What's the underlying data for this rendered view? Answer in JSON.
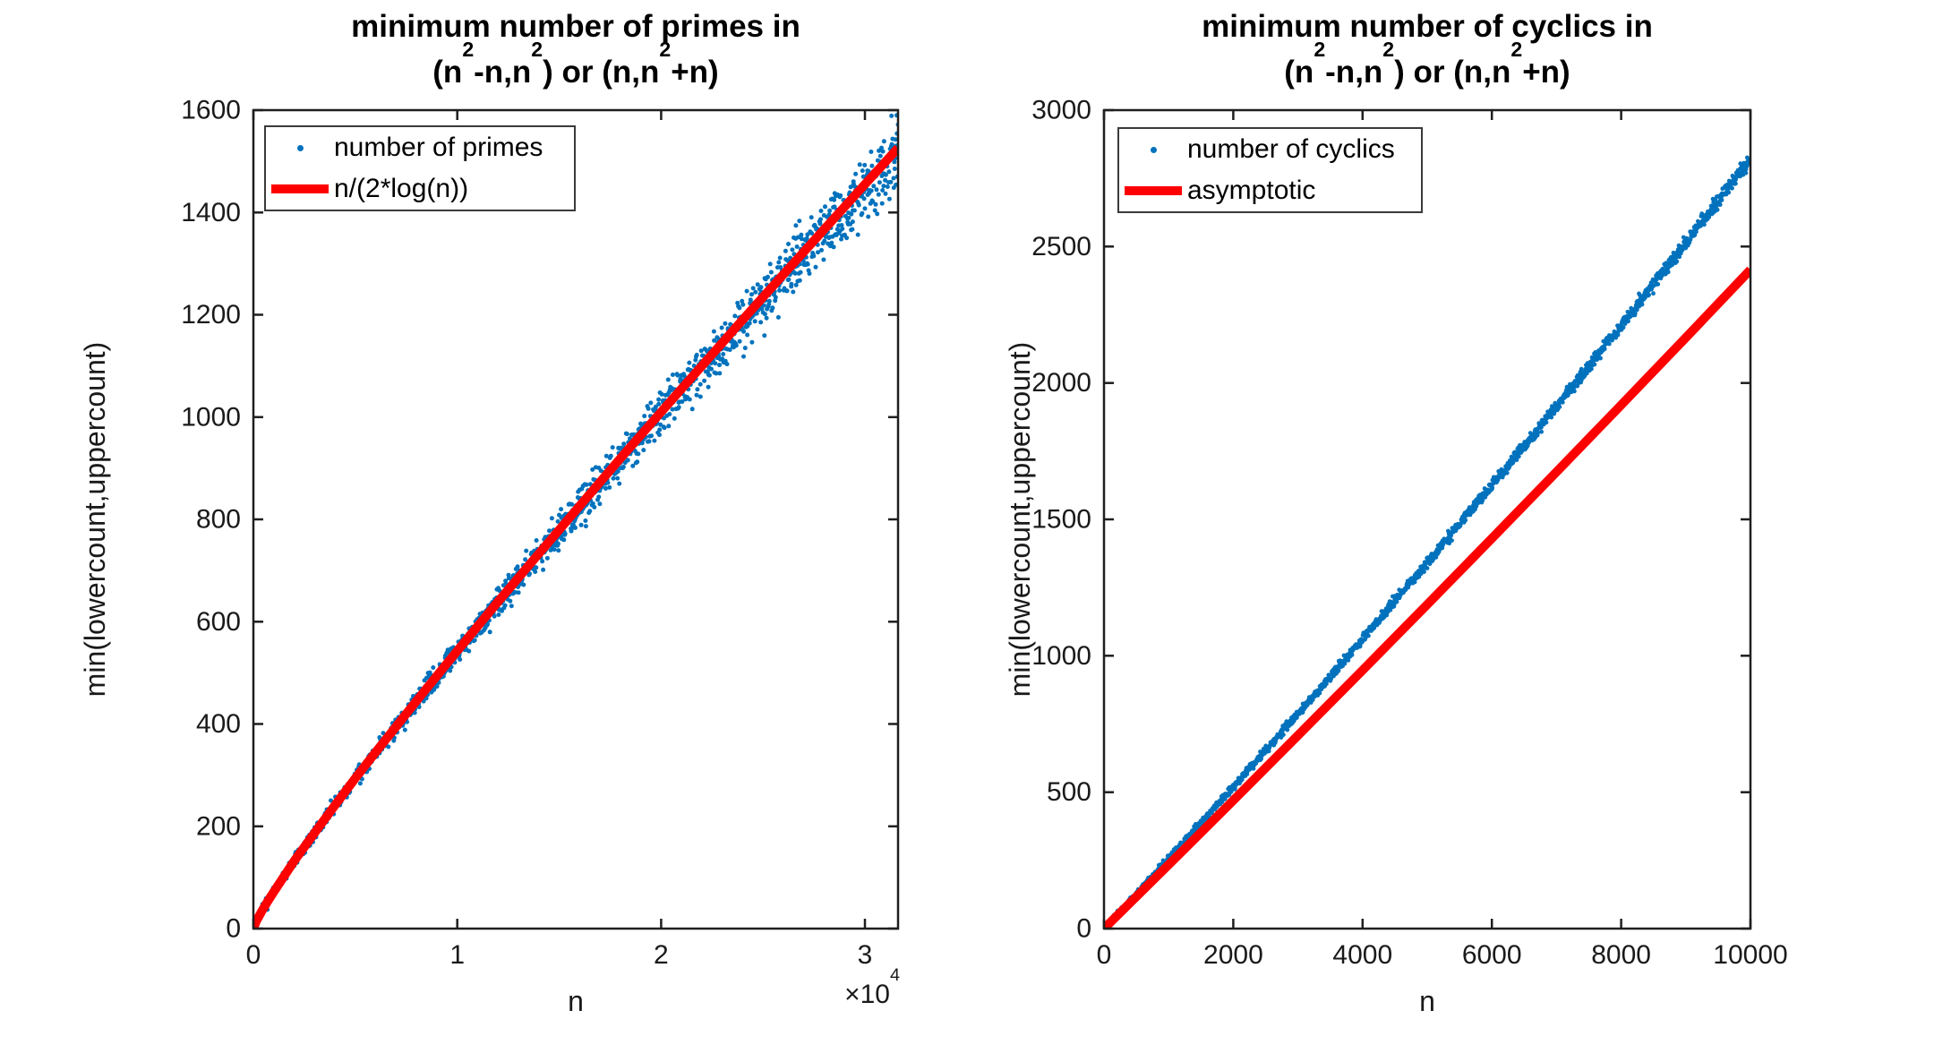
{
  "figure_background": "#FFFFFF",
  "chart_data": [
    {
      "type": "scatter",
      "title_line1": "minimum number of primes in",
      "title_line2": "(n^2-n,n^2) or (n,n^2+n)",
      "xlabel": "n",
      "ylabel": "min(lowercount,uppercount)",
      "x_exponent": "×10^4",
      "xlim": [
        0,
        31623
      ],
      "ylim": [
        0,
        1600
      ],
      "xticks": {
        "values": [
          0,
          10000,
          20000,
          30000
        ],
        "labels": [
          "0",
          "1",
          "2",
          "3"
        ]
      },
      "yticks": {
        "values": [
          0,
          200,
          400,
          600,
          800,
          1000,
          1200,
          1400,
          1600
        ],
        "labels": [
          "0",
          "200",
          "400",
          "600",
          "800",
          "1000",
          "1200",
          "1400",
          "1600"
        ]
      },
      "grid": false,
      "legend_position": "northwest",
      "legend": [
        {
          "label": "number of primes",
          "marker": "dot",
          "color": "#0072BD"
        },
        {
          "label": "n/(2*log(n))",
          "marker": "line",
          "color": "#FF0000"
        }
      ],
      "series": [
        {
          "name": "number of primes",
          "kind": "scatter",
          "color": "#0072BD",
          "marker_radius": 2.5,
          "trend": [
            [
              0,
              0
            ],
            [
              500,
              40
            ],
            [
              1000,
              72
            ],
            [
              2000,
              132
            ],
            [
              3000,
              187
            ],
            [
              4000,
              241
            ],
            [
              5000,
              294
            ],
            [
              6000,
              345
            ],
            [
              7000,
              395
            ],
            [
              8000,
              445
            ],
            [
              9000,
              494
            ],
            [
              10000,
              543
            ],
            [
              12000,
              639
            ],
            [
              14000,
              733
            ],
            [
              16000,
              826
            ],
            [
              18000,
              919
            ],
            [
              20000,
              1010
            ],
            [
              22000,
              1100
            ],
            [
              24000,
              1190
            ],
            [
              26000,
              1279
            ],
            [
              28000,
              1367
            ],
            [
              30000,
              1455
            ],
            [
              31623,
              1526
            ]
          ],
          "scatter_gen": {
            "count": 1600,
            "n_start": 150,
            "seed": 7,
            "sigma_base": 5,
            "sigma_growth": 30,
            "sigma_power": 1.2,
            "bias_amp": -12,
            "bias_power": 4
          }
        },
        {
          "name": "n/(2*log(n))",
          "kind": "line",
          "color": "#FF0000",
          "line_width": 10,
          "points": [
            [
              0,
              0
            ],
            [
              150,
              15
            ],
            [
              400,
              33
            ],
            [
              700,
              53
            ],
            [
              1000,
              72
            ],
            [
              2000,
              132
            ],
            [
              3000,
              187
            ],
            [
              4000,
              241
            ],
            [
              5000,
              294
            ],
            [
              6000,
              345
            ],
            [
              7000,
              395
            ],
            [
              8000,
              445
            ],
            [
              9000,
              494
            ],
            [
              10000,
              543
            ],
            [
              12000,
              639
            ],
            [
              14000,
              733
            ],
            [
              16000,
              826
            ],
            [
              18000,
              919
            ],
            [
              20000,
              1010
            ],
            [
              22000,
              1100
            ],
            [
              24000,
              1190
            ],
            [
              26000,
              1279
            ],
            [
              28000,
              1367
            ],
            [
              30000,
              1455
            ],
            [
              31623,
              1526
            ]
          ]
        }
      ]
    },
    {
      "type": "scatter",
      "title_line1": "minimum number of cyclics in",
      "title_line2": "(n^2-n,n^2) or (n,n^2+n)",
      "xlabel": "n",
      "ylabel": "min(lowercount,uppercount)",
      "x_exponent": "",
      "xlim": [
        0,
        10000
      ],
      "ylim": [
        0,
        3000
      ],
      "xticks": {
        "values": [
          0,
          2000,
          4000,
          6000,
          8000,
          10000
        ],
        "labels": [
          "0",
          "2000",
          "4000",
          "6000",
          "8000",
          "10000"
        ]
      },
      "yticks": {
        "values": [
          0,
          500,
          1000,
          1500,
          2000,
          2500,
          3000
        ],
        "labels": [
          "0",
          "500",
          "1000",
          "1500",
          "2000",
          "2500",
          "3000"
        ]
      },
      "grid": false,
      "legend_position": "northwest",
      "legend": [
        {
          "label": "number of cyclics",
          "marker": "dot",
          "color": "#0072BD"
        },
        {
          "label": "asymptotic",
          "marker": "line",
          "color": "#FF0000"
        }
      ],
      "series": [
        {
          "name": "number of cyclics",
          "kind": "scatter",
          "color": "#0072BD",
          "marker_radius": 2.4,
          "trend": [
            [
              0,
              0
            ],
            [
              1000,
              257
            ],
            [
              2000,
              519
            ],
            [
              3000,
              787
            ],
            [
              4000,
              1061
            ],
            [
              5000,
              1340
            ],
            [
              6000,
              1625
            ],
            [
              7000,
              1915
            ],
            [
              8000,
              2211
            ],
            [
              9000,
              2513
            ],
            [
              10000,
              2820
            ]
          ],
          "scatter_gen": {
            "count": 1700,
            "n_start": 40,
            "seed": 11,
            "sigma_base": 5.5,
            "sigma_growth": 8,
            "sigma_power": 1,
            "bias_amp": 0,
            "bias_power": 1
          }
        },
        {
          "name": "asymptotic",
          "kind": "line",
          "color": "#FF0000",
          "line_width": 10,
          "points": [
            [
              0,
              0
            ],
            [
              1000,
              234
            ],
            [
              2000,
              470
            ],
            [
              3000,
              708
            ],
            [
              4000,
              947
            ],
            [
              5000,
              1188
            ],
            [
              6000,
              1430
            ],
            [
              7000,
              1674
            ],
            [
              8000,
              1919
            ],
            [
              9000,
              2166
            ],
            [
              10000,
              2415
            ]
          ]
        }
      ]
    }
  ]
}
